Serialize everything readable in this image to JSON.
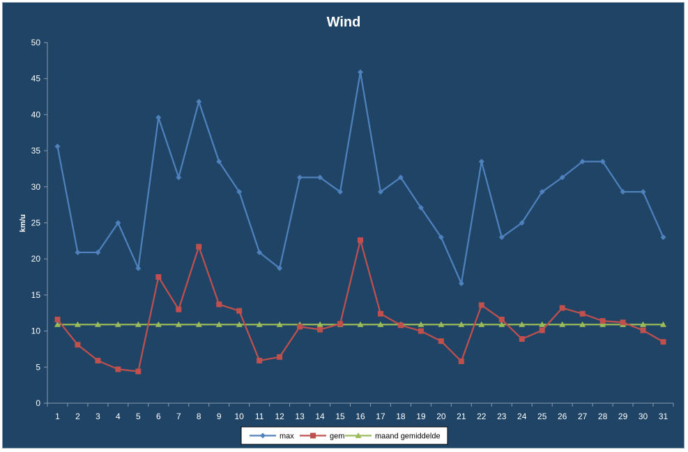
{
  "chart_data": {
    "type": "line",
    "title": "Wind",
    "xlabel": "",
    "ylabel": "km/u",
    "ylim": [
      0,
      50
    ],
    "ytick_step": 5,
    "categories": [
      "1",
      "2",
      "3",
      "4",
      "5",
      "6",
      "7",
      "8",
      "9",
      "10",
      "11",
      "12",
      "13",
      "14",
      "15",
      "16",
      "17",
      "18",
      "19",
      "20",
      "21",
      "22",
      "23",
      "24",
      "25",
      "26",
      "27",
      "28",
      "29",
      "30",
      "31"
    ],
    "grid": false,
    "legend_position": "bottom",
    "series": [
      {
        "name": "max",
        "color": "#4f81bd",
        "marker": "diamond",
        "values": [
          35.6,
          20.9,
          20.9,
          25.0,
          18.7,
          39.6,
          31.3,
          41.8,
          33.5,
          29.3,
          20.9,
          18.7,
          31.3,
          31.3,
          29.3,
          45.9,
          29.3,
          31.3,
          27.1,
          23.0,
          16.6,
          33.5,
          23.0,
          25.0,
          29.3,
          31.3,
          33.5,
          33.5,
          29.3,
          29.3,
          23.0
        ]
      },
      {
        "name": "gem",
        "color": "#c0504d",
        "marker": "square",
        "values": [
          11.6,
          8.1,
          5.9,
          4.7,
          4.4,
          17.5,
          13.0,
          21.7,
          13.7,
          12.8,
          5.9,
          6.4,
          10.6,
          10.2,
          11.0,
          22.6,
          12.4,
          10.8,
          10.0,
          8.6,
          5.8,
          13.6,
          11.6,
          8.9,
          10.1,
          13.2,
          12.4,
          11.4,
          11.2,
          10.1,
          8.5
        ]
      },
      {
        "name": "maand gemiddelde",
        "color": "#9bbb59",
        "marker": "triangle",
        "values": [
          10.9,
          10.9,
          10.9,
          10.9,
          10.9,
          10.9,
          10.9,
          10.9,
          10.9,
          10.9,
          10.9,
          10.9,
          10.9,
          10.9,
          10.9,
          10.9,
          10.9,
          10.9,
          10.9,
          10.9,
          10.9,
          10.9,
          10.9,
          10.9,
          10.9,
          10.9,
          10.9,
          10.9,
          10.9,
          10.9,
          10.9
        ]
      }
    ]
  }
}
